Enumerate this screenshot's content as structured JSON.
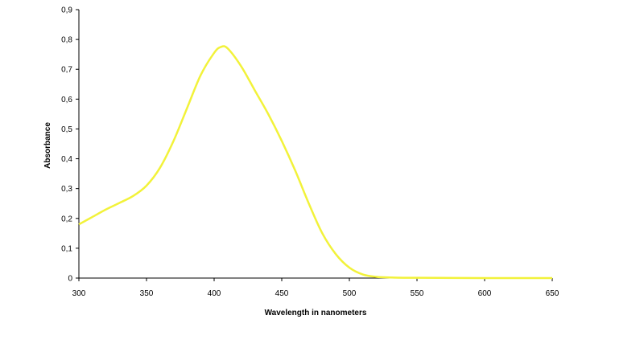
{
  "chart_data": {
    "type": "line",
    "title": "",
    "xlabel": "Wavelength in nanometers",
    "ylabel": "Absorbance",
    "xlim": [
      300,
      650
    ],
    "ylim": [
      0,
      0.9
    ],
    "x_ticks": [
      "300",
      "350",
      "400",
      "450",
      "500",
      "550",
      "600",
      "650"
    ],
    "y_ticks": [
      "0",
      "0,1",
      "0,2",
      "0,3",
      "0,4",
      "0,5",
      "0,6",
      "0,7",
      "0,8",
      "0,9"
    ],
    "grid": false,
    "legend": "none",
    "series": [
      {
        "color": "#f2f23a",
        "x": [
          300,
          310,
          320,
          330,
          340,
          350,
          360,
          370,
          380,
          390,
          400,
          405,
          410,
          420,
          430,
          440,
          450,
          460,
          470,
          480,
          490,
          500,
          510,
          520,
          530,
          540,
          550,
          600,
          650
        ],
        "y": [
          0.18,
          0.205,
          0.23,
          0.252,
          0.275,
          0.31,
          0.37,
          0.46,
          0.57,
          0.68,
          0.755,
          0.775,
          0.77,
          0.71,
          0.63,
          0.55,
          0.46,
          0.36,
          0.25,
          0.15,
          0.08,
          0.035,
          0.012,
          0.004,
          0.002,
          0.001,
          0.001,
          0.0,
          0.0
        ]
      }
    ]
  }
}
